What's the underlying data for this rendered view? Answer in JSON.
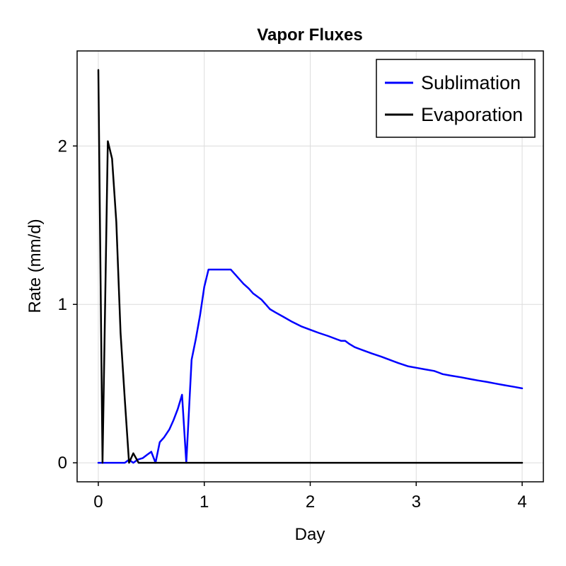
{
  "chart_data": {
    "type": "line",
    "title": "Vapor Fluxes",
    "xlabel": "Day",
    "ylabel": "Rate (mm/d)",
    "xlim": [
      -0.2,
      4.2
    ],
    "ylim": [
      -0.12,
      2.6
    ],
    "xticks": [
      0,
      1,
      2,
      3,
      4
    ],
    "yticks": [
      0,
      1,
      2
    ],
    "grid": true,
    "legend_position": "top-right",
    "series": [
      {
        "name": "Sublimation",
        "color": "#0000ff",
        "x": [
          0,
          0.04,
          0.08,
          0.12,
          0.17,
          0.21,
          0.25,
          0.29,
          0.33,
          0.37,
          0.42,
          0.46,
          0.5,
          0.54,
          0.58,
          0.62,
          0.67,
          0.71,
          0.75,
          0.79,
          0.83,
          0.88,
          0.92,
          0.96,
          1.0,
          1.04,
          1.08,
          1.12,
          1.17,
          1.21,
          1.25,
          1.29,
          1.33,
          1.37,
          1.42,
          1.46,
          1.5,
          1.54,
          1.58,
          1.62,
          1.67,
          1.75,
          1.83,
          1.92,
          2.0,
          2.08,
          2.17,
          2.25,
          2.29,
          2.33,
          2.37,
          2.42,
          2.5,
          2.58,
          2.67,
          2.75,
          2.83,
          2.92,
          3.0,
          3.08,
          3.17,
          3.21,
          3.25,
          3.33,
          3.42,
          3.5,
          3.58,
          3.67,
          3.75,
          3.83,
          3.92,
          4.0
        ],
        "y": [
          0,
          0,
          0,
          0,
          0,
          0,
          0,
          0.02,
          0,
          0.02,
          0.03,
          0.05,
          0.07,
          0,
          0.13,
          0.16,
          0.21,
          0.27,
          0.34,
          0.43,
          0,
          0.65,
          0.78,
          0.93,
          1.11,
          1.22,
          1.22,
          1.22,
          1.22,
          1.22,
          1.22,
          1.19,
          1.16,
          1.13,
          1.1,
          1.07,
          1.05,
          1.03,
          1.0,
          0.97,
          0.95,
          0.92,
          0.89,
          0.86,
          0.84,
          0.82,
          0.8,
          0.78,
          0.77,
          0.77,
          0.75,
          0.73,
          0.71,
          0.69,
          0.67,
          0.65,
          0.63,
          0.61,
          0.6,
          0.59,
          0.58,
          0.57,
          0.56,
          0.55,
          0.54,
          0.53,
          0.52,
          0.51,
          0.5,
          0.49,
          0.48,
          0.47
        ]
      },
      {
        "name": "Evaporation",
        "color": "#000000",
        "x": [
          0,
          0.04,
          0.09,
          0.13,
          0.17,
          0.21,
          0.25,
          0.29,
          0.33,
          0.38,
          0.42,
          0.5,
          1.0,
          2.0,
          3.0,
          4.0
        ],
        "y": [
          2.48,
          0,
          2.03,
          1.92,
          1.52,
          0.82,
          0.4,
          0,
          0.06,
          0,
          0,
          0,
          0,
          0,
          0,
          0
        ]
      }
    ]
  }
}
